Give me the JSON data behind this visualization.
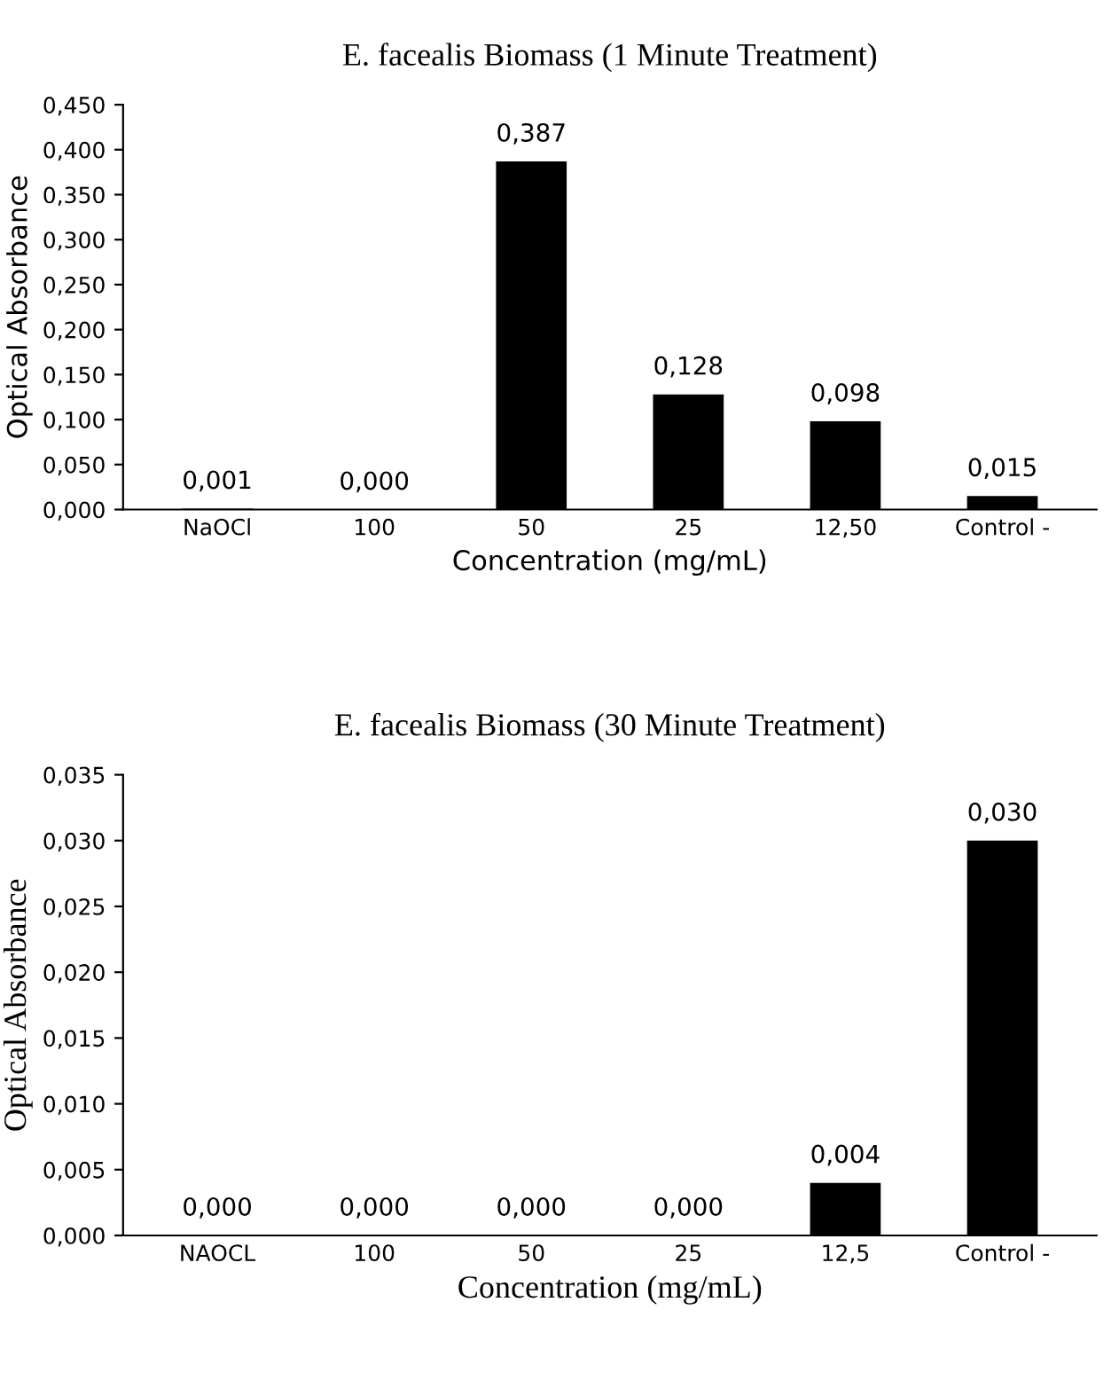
{
  "chart_data": [
    {
      "type": "bar",
      "title": "E. facealis Biomass (1 Minute Treatment)",
      "xlabel": "Concentration (mg/mL)",
      "ylabel": "Optical Absorbance",
      "categories": [
        "NaOCl",
        "100",
        "50",
        "25",
        "12,50",
        "Control -"
      ],
      "values": [
        0.001,
        0.0,
        0.387,
        0.128,
        0.098,
        0.015
      ],
      "color": "#000000",
      "value_labels": [
        "0,001",
        "0,000",
        "0,387",
        "0,128",
        "0,098",
        "0,015"
      ],
      "ylim": [
        0,
        0.45
      ],
      "yticks": [
        {
          "value": 0,
          "label": "0,000"
        },
        {
          "value": 0.05,
          "label": "0,050"
        },
        {
          "value": 0.1,
          "label": "0,100"
        },
        {
          "value": 0.15,
          "label": "0,150"
        },
        {
          "value": 0.2,
          "label": "0,200"
        },
        {
          "value": 0.25,
          "label": "0,250"
        },
        {
          "value": 0.3,
          "label": "0,300"
        },
        {
          "value": 0.35,
          "label": "0,350"
        },
        {
          "value": 0.4,
          "label": "0,400"
        },
        {
          "value": 0.45,
          "label": "0,450"
        }
      ],
      "grid": false,
      "legend": false
    },
    {
      "type": "bar",
      "title": "E. facealis Biomass (30 Minute Treatment)",
      "xlabel": "Concentration (mg/mL)",
      "ylabel": "Optical Absorbance",
      "categories": [
        "NAOCL",
        "100",
        "50",
        "25",
        "12,5",
        "Control -"
      ],
      "values": [
        0.0,
        0.0,
        0.0,
        0.0,
        0.004,
        0.03
      ],
      "color": "#000000",
      "value_labels": [
        "0,000",
        "0,000",
        "0,000",
        "0,000",
        "0,004",
        "0,030"
      ],
      "ylim": [
        0,
        0.035
      ],
      "yticks": [
        {
          "value": 0,
          "label": "0,000"
        },
        {
          "value": 0.005,
          "label": "0,005"
        },
        {
          "value": 0.01,
          "label": "0,010"
        },
        {
          "value": 0.015,
          "label": "0,015"
        },
        {
          "value": 0.02,
          "label": "0,020"
        },
        {
          "value": 0.025,
          "label": "0,025"
        },
        {
          "value": 0.03,
          "label": "0,030"
        },
        {
          "value": 0.035,
          "label": "0,035"
        }
      ],
      "grid": false,
      "legend": false
    }
  ]
}
